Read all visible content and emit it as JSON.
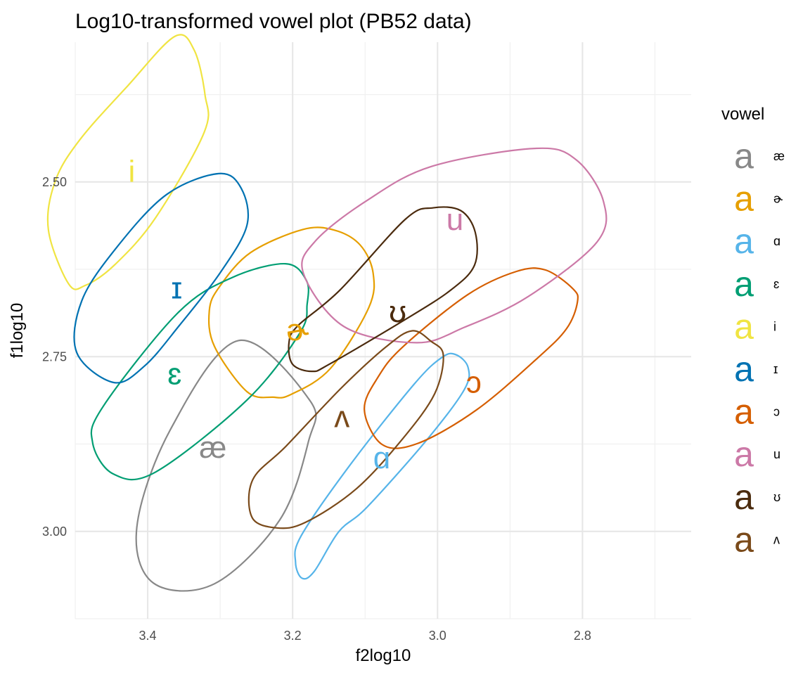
{
  "chart_data": {
    "type": "scatter",
    "title": "Log10-transformed vowel plot (PB52 data)",
    "xlabel": "f2log10",
    "ylabel": "f1log10",
    "x_reversed": true,
    "y_reversed": true,
    "xlim": [
      3.5,
      2.65
    ],
    "ylim": [
      2.3,
      3.125
    ],
    "x_ticks": [
      3.4,
      3.2,
      3.0,
      2.8
    ],
    "x_tick_labels": [
      "3.4",
      "3.2",
      "3.0",
      "2.8"
    ],
    "y_ticks": [
      2.5,
      2.75,
      3.0
    ],
    "y_tick_labels": [
      "2.50",
      "2.75",
      "3.00"
    ],
    "grid": true,
    "legend": {
      "title": "vowel",
      "placement": "right",
      "key_glyph": "a"
    },
    "series": [
      {
        "name": "æ",
        "color": "#888888",
        "label_x": 3.31,
        "label_y": 2.88,
        "ellipse": [
          [
            3.275,
            2.727
          ],
          [
            3.176,
            2.813
          ],
          [
            3.178,
            2.871
          ],
          [
            3.218,
            2.984
          ],
          [
            3.308,
            3.075
          ],
          [
            3.392,
            3.074
          ],
          [
            3.415,
            2.994
          ],
          [
            3.369,
            2.855
          ],
          [
            3.275,
            2.727
          ]
        ]
      },
      {
        "name": "ɚ",
        "color": "#E69F00",
        "label_x": 3.193,
        "label_y": 2.712,
        "ellipse": [
          [
            3.186,
            2.568
          ],
          [
            3.142,
            2.569
          ],
          [
            3.107,
            2.59
          ],
          [
            3.089,
            2.63
          ],
          [
            3.095,
            2.68
          ],
          [
            3.148,
            2.767
          ],
          [
            3.202,
            2.804
          ],
          [
            3.227,
            2.808
          ],
          [
            3.263,
            2.8
          ],
          [
            3.308,
            2.735
          ],
          [
            3.315,
            2.684
          ],
          [
            3.301,
            2.65
          ],
          [
            3.258,
            2.601
          ],
          [
            3.186,
            2.568
          ]
        ]
      },
      {
        "name": "ɑ",
        "color": "#56B4E9",
        "label_x": 3.077,
        "label_y": 2.895,
        "ellipse": [
          [
            2.975,
            2.747
          ],
          [
            2.958,
            2.765
          ],
          [
            2.963,
            2.797
          ],
          [
            3.014,
            2.868
          ],
          [
            3.097,
            2.965
          ],
          [
            3.136,
            3.0
          ],
          [
            3.17,
            3.057
          ],
          [
            3.187,
            3.067
          ],
          [
            3.196,
            3.044
          ],
          [
            3.188,
            3.006
          ],
          [
            3.12,
            2.904
          ],
          [
            3.032,
            2.789
          ],
          [
            2.994,
            2.751
          ],
          [
            2.975,
            2.747
          ]
        ]
      },
      {
        "name": "ɛ",
        "color": "#009E73",
        "label_x": 3.363,
        "label_y": 2.775,
        "ellipse": [
          [
            3.21,
            2.617
          ],
          [
            3.284,
            2.637
          ],
          [
            3.359,
            2.688
          ],
          [
            3.462,
            2.822
          ],
          [
            3.476,
            2.873
          ],
          [
            3.447,
            2.918
          ],
          [
            3.389,
            2.915
          ],
          [
            3.262,
            2.811
          ],
          [
            3.19,
            2.716
          ],
          [
            3.18,
            2.675
          ],
          [
            3.181,
            2.641
          ],
          [
            3.21,
            2.617
          ]
        ]
      },
      {
        "name": "i",
        "color": "#F0E442",
        "label_x": 3.422,
        "label_y": 2.485,
        "ellipse": [
          [
            3.363,
            2.292
          ],
          [
            3.336,
            2.311
          ],
          [
            3.321,
            2.375
          ],
          [
            3.322,
            2.429
          ],
          [
            3.389,
            2.551
          ],
          [
            3.445,
            2.618
          ],
          [
            3.486,
            2.648
          ],
          [
            3.509,
            2.646
          ],
          [
            3.537,
            2.569
          ],
          [
            3.528,
            2.5
          ],
          [
            3.494,
            2.44
          ],
          [
            3.428,
            2.363
          ],
          [
            3.363,
            2.292
          ]
        ]
      },
      {
        "name": "ɪ",
        "color": "#0072B2",
        "label_x": 3.36,
        "label_y": 2.652,
        "ellipse": [
          [
            3.302,
            2.488
          ],
          [
            3.271,
            2.509
          ],
          [
            3.263,
            2.562
          ],
          [
            3.3,
            2.63
          ],
          [
            3.356,
            2.705
          ],
          [
            3.404,
            2.763
          ],
          [
            3.447,
            2.787
          ],
          [
            3.498,
            2.744
          ],
          [
            3.491,
            2.67
          ],
          [
            3.443,
            2.594
          ],
          [
            3.374,
            2.518
          ],
          [
            3.302,
            2.488
          ]
        ]
      },
      {
        "name": "ɔ",
        "color": "#D55E00",
        "label_x": 2.95,
        "label_y": 2.787,
        "ellipse": [
          [
            2.851,
            2.626
          ],
          [
            2.813,
            2.653
          ],
          [
            2.807,
            2.672
          ],
          [
            2.822,
            2.71
          ],
          [
            2.862,
            2.752
          ],
          [
            2.946,
            2.826
          ],
          [
            3.027,
            2.874
          ],
          [
            3.076,
            2.876
          ],
          [
            3.101,
            2.826
          ],
          [
            3.082,
            2.779
          ],
          [
            3.047,
            2.735
          ],
          [
            2.958,
            2.661
          ],
          [
            2.891,
            2.628
          ],
          [
            2.851,
            2.626
          ]
        ]
      },
      {
        "name": "u",
        "color": "#CC79A7",
        "label_x": 2.976,
        "label_y": 2.554,
        "ellipse": [
          [
            2.866,
            2.452
          ],
          [
            2.809,
            2.468
          ],
          [
            2.771,
            2.528
          ],
          [
            2.78,
            2.586
          ],
          [
            2.875,
            2.664
          ],
          [
            2.963,
            2.708
          ],
          [
            3.029,
            2.73
          ],
          [
            3.129,
            2.707
          ],
          [
            3.185,
            2.631
          ],
          [
            3.169,
            2.585
          ],
          [
            3.098,
            2.527
          ],
          [
            3.009,
            2.478
          ],
          [
            2.866,
            2.452
          ]
        ]
      },
      {
        "name": "ʊ",
        "color": "#4B2B0E",
        "label_x": 3.055,
        "label_y": 2.686,
        "ellipse": [
          [
            3.006,
            2.537
          ],
          [
            2.968,
            2.541
          ],
          [
            2.948,
            2.572
          ],
          [
            2.949,
            2.619
          ],
          [
            2.982,
            2.655
          ],
          [
            3.048,
            2.699
          ],
          [
            3.148,
            2.76
          ],
          [
            3.173,
            2.771
          ],
          [
            3.2,
            2.761
          ],
          [
            3.205,
            2.73
          ],
          [
            3.193,
            2.706
          ],
          [
            3.135,
            2.655
          ],
          [
            3.044,
            2.553
          ],
          [
            3.006,
            2.537
          ]
        ]
      },
      {
        "name": "ʌ",
        "color": "#7A4A1A",
        "label_x": 3.132,
        "label_y": 2.836,
        "ellipse": [
          [
            3.035,
            2.713
          ],
          [
            3.009,
            2.728
          ],
          [
            2.992,
            2.748
          ],
          [
            3.004,
            2.803
          ],
          [
            3.047,
            2.866
          ],
          [
            3.112,
            2.939
          ],
          [
            3.182,
            2.987
          ],
          [
            3.222,
            2.995
          ],
          [
            3.256,
            2.98
          ],
          [
            3.255,
            2.926
          ],
          [
            3.209,
            2.878
          ],
          [
            3.133,
            2.795
          ],
          [
            3.07,
            2.735
          ],
          [
            3.035,
            2.713
          ]
        ]
      }
    ]
  }
}
